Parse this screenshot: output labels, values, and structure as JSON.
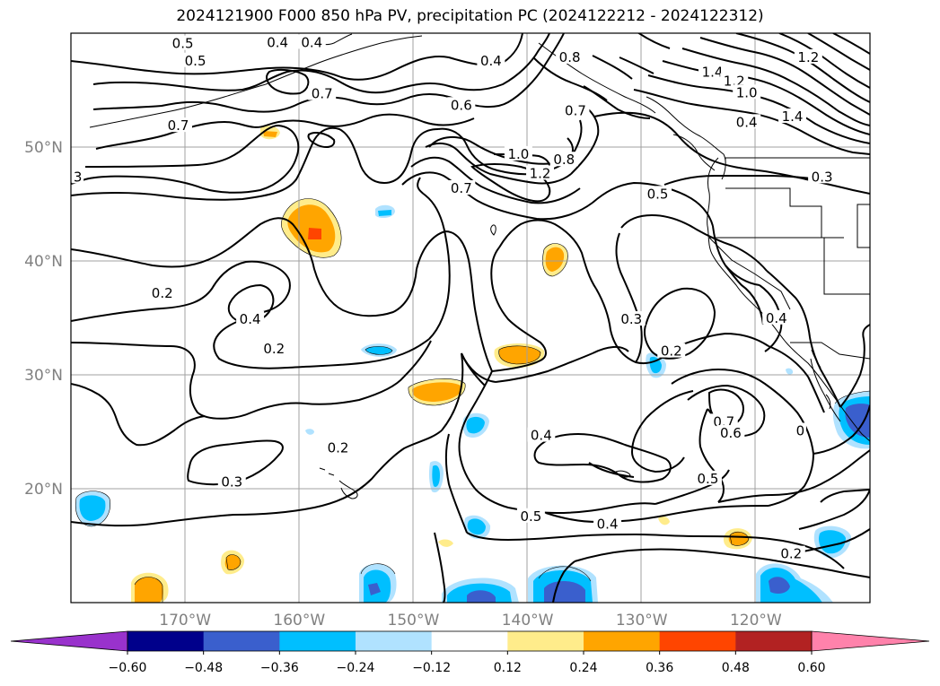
{
  "title": "2024121900 F000 850 hPa PV, precipitation PC (2024122212 - 2024122312)",
  "map": {
    "lon_range": [
      -180,
      -110
    ],
    "lat_range": [
      10,
      60
    ],
    "lon_ticks": [
      {
        "value": -170,
        "label": "170°W"
      },
      {
        "value": -160,
        "label": "160°W"
      },
      {
        "value": -150,
        "label": "150°W"
      },
      {
        "value": -140,
        "label": "140°W"
      },
      {
        "value": -130,
        "label": "130°W"
      },
      {
        "value": -120,
        "label": "120°W"
      }
    ],
    "lat_ticks": [
      {
        "value": 20,
        "label": "20°N"
      },
      {
        "value": 30,
        "label": "30°N"
      },
      {
        "value": 40,
        "label": "40°N"
      },
      {
        "value": 50,
        "label": "50°N"
      }
    ],
    "grid": true
  },
  "colorbar": {
    "levels": [
      "−0.60",
      "−0.48",
      "−0.36",
      "−0.24",
      "−0.12",
      "0.12",
      "0.24",
      "0.36",
      "0.48",
      "0.60"
    ],
    "colors": [
      "#9932cc",
      "#00008b",
      "#3a5fcd",
      "#00bfff",
      "#b0e2ff",
      "#ffffff",
      "#ffec8b",
      "#ffa500",
      "#ff4500",
      "#b22222",
      "#ff82ab"
    ],
    "extend": "both"
  },
  "contour_labels": [
    {
      "text": "0.5",
      "lon": -170.2,
      "lat": 59.0
    },
    {
      "text": "0.4",
      "lon": -161.9,
      "lat": 59.1
    },
    {
      "text": "0.4",
      "lon": -158.9,
      "lat": 59.1
    },
    {
      "text": "0.5",
      "lon": -169.1,
      "lat": 57.5
    },
    {
      "text": "0.4",
      "lon": -143.2,
      "lat": 57.5
    },
    {
      "text": "0.7",
      "lon": -158.0,
      "lat": 54.6
    },
    {
      "text": "0.6",
      "lon": -145.8,
      "lat": 53.6
    },
    {
      "text": "0.7",
      "lon": -170.6,
      "lat": 51.8
    },
    {
      "text": "0.8",
      "lon": -136.3,
      "lat": 57.8
    },
    {
      "text": "0.7",
      "lon": -135.8,
      "lat": 53.1
    },
    {
      "text": "1.0",
      "lon": -140.8,
      "lat": 49.3
    },
    {
      "text": "0.8",
      "lon": -136.8,
      "lat": 48.8
    },
    {
      "text": "1.2",
      "lon": -138.9,
      "lat": 47.6
    },
    {
      "text": "0.7",
      "lon": -145.8,
      "lat": 46.3
    },
    {
      "text": "0.5",
      "lon": -128.6,
      "lat": 45.8
    },
    {
      "text": "1.4",
      "lon": -123.8,
      "lat": 56.5
    },
    {
      "text": "1.2",
      "lon": -121.9,
      "lat": 55.7
    },
    {
      "text": "1.0",
      "lon": -120.8,
      "lat": 54.7
    },
    {
      "text": "0.4",
      "lon": -120.8,
      "lat": 52.1
    },
    {
      "text": "1.4",
      "lon": -116.8,
      "lat": 52.6
    },
    {
      "text": "1.2",
      "lon": -115.4,
      "lat": 57.8
    },
    {
      "text": "0.3",
      "lon": -114.2,
      "lat": 47.3
    },
    {
      "text": "3",
      "lon": -179.4,
      "lat": 47.3
    },
    {
      "text": "0.2",
      "lon": -172.0,
      "lat": 37.1
    },
    {
      "text": "0.4",
      "lon": -164.3,
      "lat": 34.8
    },
    {
      "text": "0.2",
      "lon": -162.2,
      "lat": 32.2
    },
    {
      "text": "0.3",
      "lon": -130.9,
      "lat": 34.8
    },
    {
      "text": "0.2",
      "lon": -127.4,
      "lat": 32.0
    },
    {
      "text": "0.4",
      "lon": -118.2,
      "lat": 34.9
    },
    {
      "text": "0.7",
      "lon": -122.8,
      "lat": 25.8
    },
    {
      "text": "0.6",
      "lon": -122.2,
      "lat": 24.8
    },
    {
      "text": "0",
      "lon": -116.1,
      "lat": 25.0
    },
    {
      "text": "0.4",
      "lon": -138.8,
      "lat": 24.6
    },
    {
      "text": "0.2",
      "lon": -156.6,
      "lat": 23.5
    },
    {
      "text": "0.3",
      "lon": -165.9,
      "lat": 20.5
    },
    {
      "text": "0.5",
      "lon": -124.2,
      "lat": 20.8
    },
    {
      "text": "0.5",
      "lon": -139.7,
      "lat": 17.5
    },
    {
      "text": "0.4",
      "lon": -133.0,
      "lat": 16.8
    },
    {
      "text": "0.2",
      "lon": -116.9,
      "lat": 14.2
    }
  ]
}
